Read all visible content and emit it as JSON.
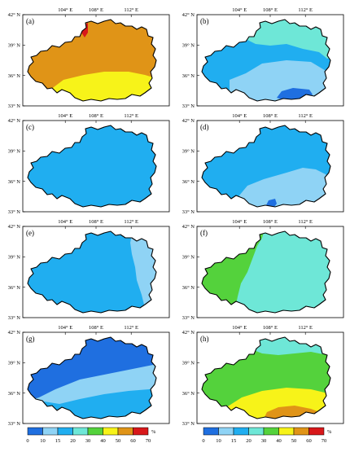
{
  "lon_ticks": [
    "104° E",
    "108° E",
    "112° E"
  ],
  "lat_ticks": [
    "42° N",
    "39° N",
    "36° N",
    "33° N"
  ],
  "legend": {
    "unit": "%",
    "ticks": [
      "0",
      "10",
      "15",
      "20",
      "30",
      "40",
      "50",
      "60",
      "70"
    ],
    "colors": [
      "#1f6fe0",
      "#8fd3f5",
      "#20aef0",
      "#6ee7d7",
      "#54d23c",
      "#f7f319",
      "#e09417",
      "#d8181a"
    ]
  },
  "panels": [
    {
      "label": "(a)",
      "background": "#e09417",
      "zones": [
        {
          "id": "yellow-south",
          "color": "#f7f319"
        },
        {
          "id": "red-northwest-edge",
          "color": "#d8181a"
        }
      ]
    },
    {
      "label": "(b)",
      "background": "#20aef0",
      "zones": [
        {
          "id": "teal-north",
          "color": "#6ee7d7"
        },
        {
          "id": "light-blue-south",
          "color": "#8fd3f5"
        },
        {
          "id": "dark-blue-south",
          "color": "#1f6fe0"
        }
      ]
    },
    {
      "label": "(c)",
      "background": "#20aef0",
      "zones": []
    },
    {
      "label": "(d)",
      "background": "#20aef0",
      "zones": [
        {
          "id": "light-blue-south",
          "color": "#8fd3f5"
        },
        {
          "id": "dark-blue-spot",
          "color": "#1f6fe0"
        }
      ]
    },
    {
      "label": "(e)",
      "background": "#20aef0",
      "zones": [
        {
          "id": "light-blue-east",
          "color": "#8fd3f5"
        }
      ]
    },
    {
      "label": "(f)",
      "background": "#6ee7d7",
      "zones": [
        {
          "id": "green-west",
          "color": "#54d23c"
        }
      ]
    },
    {
      "label": "(g)",
      "background": "#8fd3f5",
      "zones": [
        {
          "id": "dark-blue-north",
          "color": "#1f6fe0"
        },
        {
          "id": "mid-blue-band",
          "color": "#20aef0"
        },
        {
          "id": "mid-blue-south",
          "color": "#20aef0"
        }
      ]
    },
    {
      "label": "(h)",
      "background": "#54d23c",
      "zones": [
        {
          "id": "teal-north",
          "color": "#6ee7d7"
        },
        {
          "id": "yellow-south",
          "color": "#f7f319"
        },
        {
          "id": "orange-south",
          "color": "#e09417"
        }
      ]
    }
  ]
}
